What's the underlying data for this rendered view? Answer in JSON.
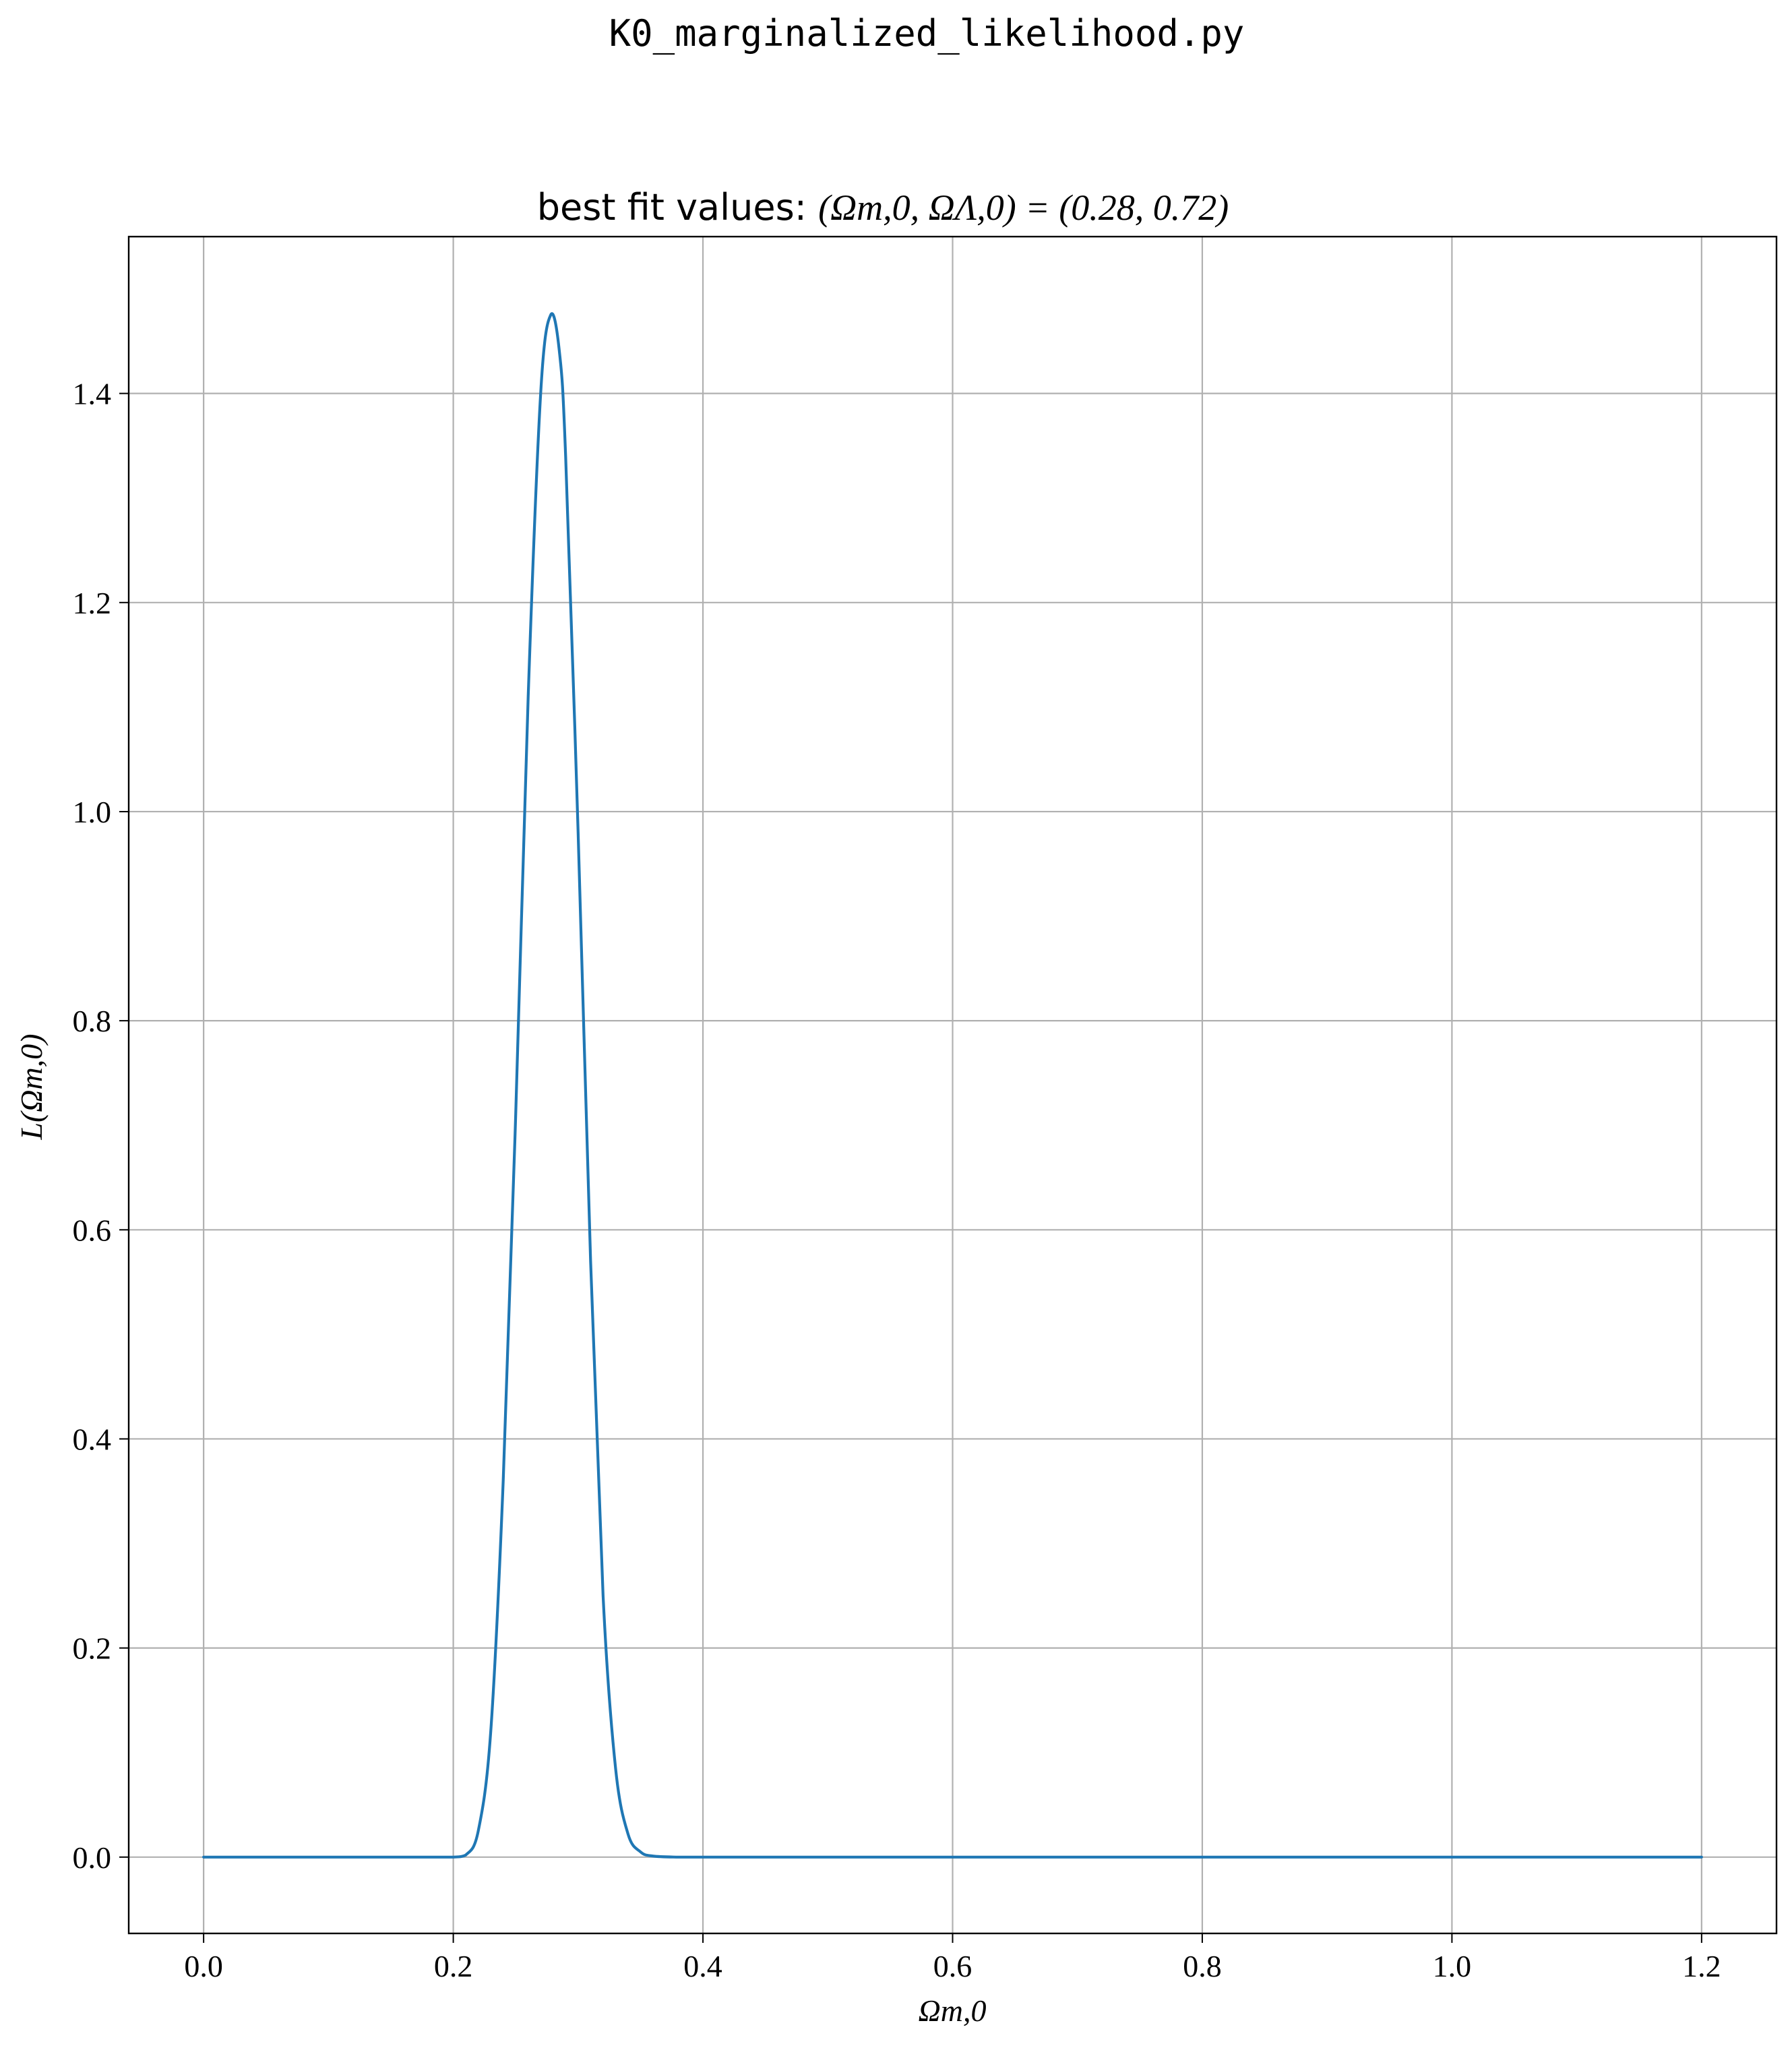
{
  "figure": {
    "suptitle": "K0_marginalized_likelihood.py"
  },
  "chart_data": {
    "type": "line",
    "title": {
      "prefix": "best fit values: ",
      "math": "(Ωm,0, ΩΛ,0) = (0.28, 0.72)"
    },
    "xlabel": "Ωm,0",
    "ylabel": "L(Ωm,0)",
    "xlim": [
      -0.06,
      1.26
    ],
    "ylim": [
      -0.073,
      1.55
    ],
    "xticks": [
      0.0,
      0.2,
      0.4,
      0.6,
      0.8,
      1.0,
      1.2
    ],
    "xtick_labels": [
      "0.0",
      "0.2",
      "0.4",
      "0.6",
      "0.8",
      "1.0",
      "1.2"
    ],
    "yticks": [
      0.0,
      0.2,
      0.4,
      0.6,
      0.8,
      1.0,
      1.2,
      1.4
    ],
    "ytick_labels": [
      "0.0",
      "0.2",
      "0.4",
      "0.6",
      "0.8",
      "1.0",
      "1.2",
      "1.4"
    ],
    "grid": true,
    "series": [
      {
        "color": "#1f77b4",
        "x": [
          0.0,
          0.18,
          0.2,
          0.21,
          0.22,
          0.23,
          0.24,
          0.25,
          0.26,
          0.27,
          0.278,
          0.285,
          0.29,
          0.3,
          0.31,
          0.32,
          0.33,
          0.34,
          0.35,
          0.36,
          0.38,
          0.4,
          0.6,
          0.8,
          1.0,
          1.2
        ],
        "y": [
          0.0,
          0.0,
          0.0,
          0.002,
          0.025,
          0.12,
          0.36,
          0.71,
          1.11,
          1.4,
          1.475,
          1.44,
          1.34,
          0.98,
          0.57,
          0.25,
          0.085,
          0.022,
          0.005,
          0.001,
          0.0,
          0.0,
          0.0,
          0.0,
          0.0,
          0.0
        ]
      }
    ]
  }
}
